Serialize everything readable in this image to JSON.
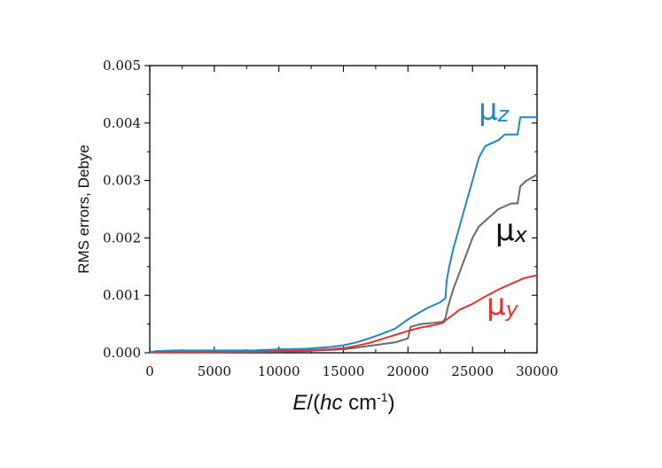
{
  "chart_data": {
    "type": "line",
    "xlabel": {
      "italic": "E",
      "pre": "/(",
      "italic2": "hc",
      "unit": " cm",
      "sup": "-1",
      "post": ")"
    },
    "ylabel": "RMS errors, Debye",
    "xlim": [
      0,
      30000
    ],
    "ylim": [
      0,
      0.005
    ],
    "x_ticks": [
      "0",
      "5000",
      "10000",
      "15000",
      "20000",
      "25000",
      "30000"
    ],
    "y_ticks": [
      "0.000",
      "0.001",
      "0.002",
      "0.003",
      "0.004",
      "0.005"
    ],
    "grid": false,
    "series": [
      {
        "name": "μz",
        "label_base": "μ",
        "label_sub": "z",
        "color": "#1f86c8",
        "points": [
          [
            0,
            1e-05
          ],
          [
            500,
            3e-05
          ],
          [
            2000,
            4e-05
          ],
          [
            5000,
            4e-05
          ],
          [
            8000,
            4e-05
          ],
          [
            10000,
            6e-05
          ],
          [
            12000,
            7e-05
          ],
          [
            14000,
            0.0001
          ],
          [
            15000,
            0.00013
          ],
          [
            16000,
            0.00018
          ],
          [
            17000,
            0.00025
          ],
          [
            18000,
            0.00033
          ],
          [
            19000,
            0.00042
          ],
          [
            19800,
            0.00055
          ],
          [
            20500,
            0.00065
          ],
          [
            21500,
            0.00078
          ],
          [
            22500,
            0.00088
          ],
          [
            22900,
            0.00095
          ],
          [
            23000,
            0.00125
          ],
          [
            23200,
            0.0015
          ],
          [
            23500,
            0.0018
          ],
          [
            24000,
            0.0022
          ],
          [
            24500,
            0.0026
          ],
          [
            25000,
            0.003
          ],
          [
            25500,
            0.0034
          ],
          [
            26000,
            0.0036
          ],
          [
            27000,
            0.0037
          ],
          [
            27500,
            0.0038
          ],
          [
            28500,
            0.0038
          ],
          [
            28700,
            0.0041
          ],
          [
            29500,
            0.0041
          ],
          [
            30000,
            0.0041
          ]
        ]
      },
      {
        "name": "μx",
        "label_base": "μ",
        "label_sub": "x",
        "color": "#6a6a6a",
        "points": [
          [
            0,
            1e-05
          ],
          [
            5000,
            1e-05
          ],
          [
            10000,
            2e-05
          ],
          [
            12000,
            3e-05
          ],
          [
            14000,
            5e-05
          ],
          [
            15000,
            6e-05
          ],
          [
            16000,
            9e-05
          ],
          [
            17000,
            0.00012
          ],
          [
            18000,
            0.00015
          ],
          [
            19000,
            0.00018
          ],
          [
            20000,
            0.00025
          ],
          [
            20200,
            0.00045
          ],
          [
            21000,
            0.0005
          ],
          [
            22000,
            0.00052
          ],
          [
            22700,
            0.00054
          ],
          [
            22900,
            0.0006
          ],
          [
            23100,
            0.0008
          ],
          [
            23500,
            0.0011
          ],
          [
            24000,
            0.0014
          ],
          [
            24500,
            0.0017
          ],
          [
            25000,
            0.002
          ],
          [
            25500,
            0.0022
          ],
          [
            26000,
            0.0023
          ],
          [
            27000,
            0.0025
          ],
          [
            28000,
            0.0026
          ],
          [
            28500,
            0.0026
          ],
          [
            28700,
            0.0029
          ],
          [
            29200,
            0.003
          ],
          [
            30000,
            0.0031
          ]
        ]
      },
      {
        "name": "μy",
        "label_base": "μ",
        "label_sub": "y",
        "color": "#e53333",
        "points": [
          [
            0,
            1e-05
          ],
          [
            5000,
            2e-05
          ],
          [
            10000,
            3e-05
          ],
          [
            12000,
            4e-05
          ],
          [
            14000,
            6e-05
          ],
          [
            15000,
            8e-05
          ],
          [
            16000,
            0.00012
          ],
          [
            17000,
            0.00017
          ],
          [
            18000,
            0.00024
          ],
          [
            19000,
            0.00031
          ],
          [
            20000,
            0.00038
          ],
          [
            21000,
            0.00044
          ],
          [
            22000,
            0.00048
          ],
          [
            22700,
            0.00052
          ],
          [
            23000,
            0.00058
          ],
          [
            23500,
            0.00066
          ],
          [
            24000,
            0.00075
          ],
          [
            25000,
            0.00085
          ],
          [
            26000,
            0.00098
          ],
          [
            27000,
            0.0011
          ],
          [
            28000,
            0.0012
          ],
          [
            29000,
            0.0013
          ],
          [
            30000,
            0.00135
          ]
        ]
      }
    ]
  }
}
